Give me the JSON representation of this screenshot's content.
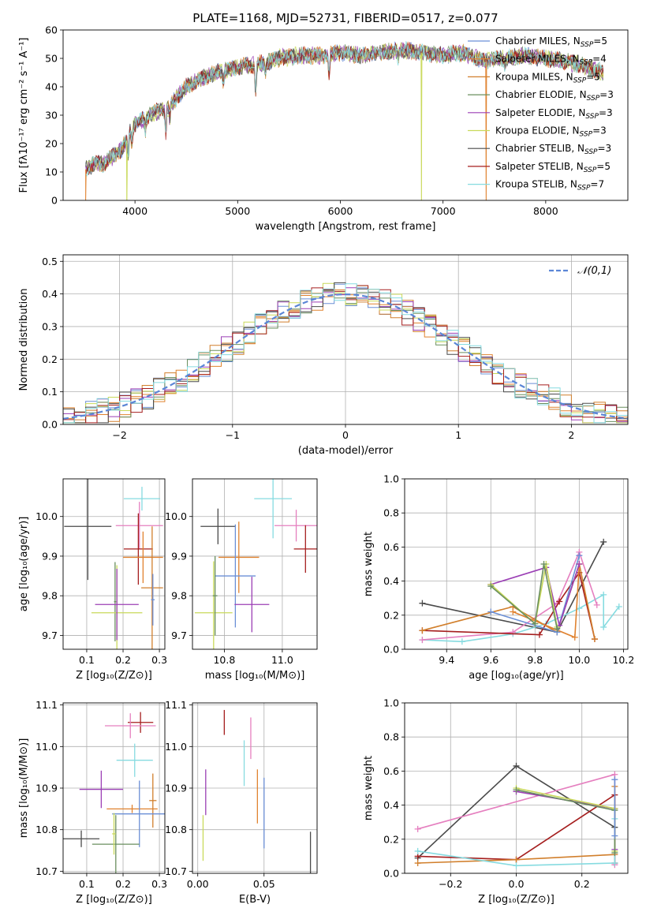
{
  "colors": [
    "#6b8fd6",
    "#e0822f",
    "#d17f2c",
    "#6a8f5f",
    "#9b3fb5",
    "#c9d95a",
    "#4a4a4a",
    "#a51e1e",
    "#86dbe0"
  ],
  "model_colors": {
    "chabrier_miles": "#6b8fd6",
    "salpeter_miles": "#e0822f",
    "kroupa_miles": "#d17f2c",
    "chabrier_elodie": "#6a8f5f",
    "salpeter_elodie": "#9b3fb5",
    "kroupa_elodie": "#c9d95a",
    "chabrier_stelib": "#4a4a4a",
    "salpeter_stelib": "#a51e1e",
    "kroupa_stelib": "#86dbe0",
    "pink": "#e57fbf",
    "normal": "#5b86d6"
  },
  "chart_data": [
    {
      "type": "line",
      "title": "PLATE=1168, MJD=52731, FIBERID=0517, z=0.077",
      "xlabel": "wavelength [Angstrom, rest frame]",
      "ylabel": "Flux [fλ10⁻¹⁷ erg cm⁻² s⁻¹ A⁻¹]",
      "xlim": [
        3300,
        8800
      ],
      "ylim": [
        0,
        60
      ],
      "xticks": [
        "4000",
        "5000",
        "6000",
        "7000",
        "8000"
      ],
      "yticks": [
        "0",
        "10",
        "20",
        "30",
        "40",
        "50",
        "60"
      ],
      "legend": {
        "position": "top-right",
        "entries": [
          {
            "label": "Chabrier MILES, N",
            "sub": "SSP",
            "tail": "=5"
          },
          {
            "label": "Salpeter MILES, N",
            "sub": "SSP",
            "tail": "=4"
          },
          {
            "label": "Kroupa MILES, N",
            "sub": "SSP",
            "tail": "=5"
          },
          {
            "label": "Chabrier ELODIE, N",
            "sub": "SSP",
            "tail": "=3"
          },
          {
            "label": "Salpeter ELODIE, N",
            "sub": "SSP",
            "tail": "=3"
          },
          {
            "label": "Kroupa ELODIE, N",
            "sub": "SSP",
            "tail": "=3"
          },
          {
            "label": "Chabrier STELIB, N",
            "sub": "SSP",
            "tail": "=3"
          },
          {
            "label": "Salpeter STELIB, N",
            "sub": "SSP",
            "tail": "=5"
          },
          {
            "label": "Kroupa STELIB, N",
            "sub": "SSP",
            "tail": "=7"
          }
        ]
      },
      "continuum": [
        [
          3520,
          11
        ],
        [
          3600,
          13
        ],
        [
          3700,
          13
        ],
        [
          3800,
          16
        ],
        [
          3870,
          18
        ],
        [
          3920,
          21
        ],
        [
          3960,
          25
        ],
        [
          4000,
          27
        ],
        [
          4100,
          29
        ],
        [
          4200,
          31
        ],
        [
          4300,
          32
        ],
        [
          4400,
          36
        ],
        [
          4500,
          40
        ],
        [
          4600,
          42
        ],
        [
          4800,
          45
        ],
        [
          5000,
          47
        ],
        [
          5200,
          48
        ],
        [
          5400,
          50
        ],
        [
          5600,
          51
        ],
        [
          5800,
          51
        ],
        [
          6000,
          52
        ],
        [
          6200,
          51
        ],
        [
          6400,
          52
        ],
        [
          6600,
          53
        ],
        [
          6800,
          52
        ],
        [
          7000,
          51
        ],
        [
          7200,
          52
        ],
        [
          7400,
          49
        ],
        [
          7600,
          50
        ],
        [
          7800,
          51
        ],
        [
          8000,
          50
        ],
        [
          8200,
          49
        ],
        [
          8400,
          47
        ],
        [
          8560,
          45
        ]
      ],
      "absorption_lines": [
        [
          3934,
          6
        ],
        [
          3969,
          5
        ],
        [
          4102,
          4
        ],
        [
          4300,
          8
        ],
        [
          4340,
          5
        ],
        [
          4861,
          4
        ],
        [
          5175,
          9
        ],
        [
          5270,
          3
        ],
        [
          5890,
          7
        ],
        [
          6563,
          3
        ],
        [
          7600,
          2
        ]
      ],
      "dropouts": [
        {
          "series": "salpeter_miles",
          "x": [
            3520,
            7420
          ]
        },
        {
          "series": "kroupa_elodie",
          "x": [
            3920,
            6790
          ]
        }
      ]
    },
    {
      "type": "histogram",
      "xlabel": "(data-model)/error",
      "ylabel": "Normed distribution",
      "xlim": [
        -2.5,
        2.5
      ],
      "ylim": [
        0,
        0.52
      ],
      "xticks": [
        "−2",
        "−1",
        "0",
        "1",
        "2"
      ],
      "yticks": [
        "0.0",
        "0.1",
        "0.2",
        "0.3",
        "0.4",
        "0.5"
      ],
      "legend": {
        "label": "𝒩(0,1)",
        "position": "top-right"
      },
      "bin_width": 0.1,
      "normal_pdf": {
        "mean": 0,
        "sigma": 1
      }
    },
    {
      "type": "scatter",
      "xlabel": "Z [log₁₀(Z/Z⊙)]",
      "ylabel": "age  [log₁₀(age/yr)]",
      "xlim": [
        0.035,
        0.315
      ],
      "ylim": [
        9.665,
        10.095
      ],
      "xticks": [
        "0.1",
        "0.2",
        "0.3"
      ],
      "yticks": [
        "9.7",
        "9.8",
        "9.9",
        "10.0"
      ],
      "points": [
        {
          "c": "#4a4a4a",
          "x": 0.103,
          "xerr": 0.065,
          "y": 9.975,
          "yerr": 0.135
        },
        {
          "c": "#e57fbf",
          "x": 0.245,
          "xerr": 0.065,
          "y": 9.977,
          "yerr": 0.06
        },
        {
          "c": "#86dbe0",
          "x": 0.252,
          "xerr": 0.05,
          "y": 10.045,
          "yerr": 0.03
        },
        {
          "c": "#a51e1e",
          "x": 0.242,
          "xerr": 0.04,
          "y": 9.918,
          "yerr": 0.09
        },
        {
          "c": "#e0822f",
          "x": 0.255,
          "xerr": 0.055,
          "y": 9.897,
          "yerr": 0.065
        },
        {
          "c": "#d17f2c",
          "x": 0.28,
          "xerr": 0.03,
          "y": 9.82,
          "yerr": 0.155
        },
        {
          "c": "#6b8fd6",
          "x": 0.282,
          "xerr": 0.005,
          "y": 9.79,
          "yerr": 0.065
        },
        {
          "c": "#6a8f5f",
          "x": 0.178,
          "xerr": 0.003,
          "y": 9.785,
          "yerr": 0.1
        },
        {
          "c": "#c9d95a",
          "x": 0.183,
          "xerr": 0.07,
          "y": 9.757,
          "yerr": 0.12
        },
        {
          "c": "#9b3fb5",
          "x": 0.183,
          "xerr": 0.06,
          "y": 9.778,
          "yerr": 0.09
        }
      ]
    },
    {
      "type": "scatter",
      "xlabel": "mass [log₁₀(M/M⊙)]",
      "ylabel": "",
      "xlim": [
        10.69,
        11.12
      ],
      "ylim": [
        9.665,
        10.095
      ],
      "xticks": [
        "10.8",
        "11.0"
      ],
      "yticks": [
        "9.7",
        "9.8",
        "9.9",
        "10.0"
      ],
      "points": [
        {
          "c": "#4a4a4a",
          "x": 10.778,
          "xerr": 0.06,
          "y": 9.975,
          "yerr": 0.045
        },
        {
          "c": "#86dbe0",
          "x": 10.968,
          "xerr": 0.065,
          "y": 10.045,
          "yerr": 0.1
        },
        {
          "c": "#e57fbf",
          "x": 11.048,
          "xerr": 0.075,
          "y": 9.977,
          "yerr": 0.04
        },
        {
          "c": "#a51e1e",
          "x": 11.08,
          "xerr": 0.04,
          "y": 9.918,
          "yerr": 0.06
        },
        {
          "c": "#e0822f",
          "x": 10.85,
          "xerr": 0.07,
          "y": 9.897,
          "yerr": 0.09
        },
        {
          "c": "#6b8fd6",
          "x": 10.838,
          "xerr": 0.07,
          "y": 9.85,
          "yerr": 0.13
        },
        {
          "c": "#9b3fb5",
          "x": 10.895,
          "xerr": 0.06,
          "y": 9.778,
          "yerr": 0.07
        },
        {
          "c": "#c9d95a",
          "x": 10.763,
          "xerr": 0.065,
          "y": 9.757,
          "yerr": 0.13
        },
        {
          "c": "#6a8f5f",
          "x": 10.768,
          "xerr": 0.008,
          "y": 9.8,
          "yerr": 0.1
        }
      ]
    },
    {
      "type": "line",
      "xlabel": "age  [log₁₀(age/yr)]",
      "ylabel": "mass weight",
      "xlim": [
        9.21,
        10.22
      ],
      "ylim": [
        0,
        1
      ],
      "xticks": [
        "9.4",
        "9.6",
        "9.8",
        "10.0",
        "10.2"
      ],
      "yticks": [
        "0.0",
        "0.2",
        "0.4",
        "0.6",
        "0.8",
        "1.0"
      ],
      "series": [
        {
          "c": "#4a4a4a",
          "points": [
            [
              9.29,
              0.27
            ],
            [
              9.9,
              0.1
            ],
            [
              10.11,
              0.63
            ]
          ]
        },
        {
          "c": "#86dbe0",
          "points": [
            [
              9.29,
              0.055
            ],
            [
              9.47,
              0.045
            ],
            [
              9.7,
              0.09
            ],
            [
              9.85,
              0.15
            ],
            [
              10.0,
              0.24
            ],
            [
              10.11,
              0.32
            ],
            [
              10.11,
              0.13
            ],
            [
              10.18,
              0.25
            ]
          ]
        },
        {
          "c": "#e57fbf",
          "points": [
            [
              9.29,
              0.055
            ],
            [
              9.7,
              0.1
            ],
            [
              9.9,
              0.27
            ],
            [
              10.0,
              0.57
            ],
            [
              10.08,
              0.26
            ]
          ]
        },
        {
          "c": "#a51e1e",
          "points": [
            [
              9.29,
              0.11
            ],
            [
              9.82,
              0.085
            ],
            [
              9.91,
              0.28
            ],
            [
              10.0,
              0.45
            ],
            [
              10.07,
              0.06
            ]
          ]
        },
        {
          "c": "#d17f2c",
          "points": [
            [
              9.29,
              0.11
            ],
            [
              9.7,
              0.25
            ],
            [
              9.9,
              0.1
            ],
            [
              10.0,
              0.5
            ],
            [
              10.07,
              0.06
            ]
          ]
        },
        {
          "c": "#e0822f",
          "points": [
            [
              9.7,
              0.22
            ],
            [
              9.98,
              0.07
            ],
            [
              10.0,
              0.5
            ]
          ]
        },
        {
          "c": "#6b8fd6",
          "points": [
            [
              9.6,
              0.22
            ],
            [
              9.9,
              0.1
            ],
            [
              10.0,
              0.55
            ]
          ]
        },
        {
          "c": "#9b3fb5",
          "points": [
            [
              9.6,
              0.38
            ],
            [
              9.85,
              0.48
            ],
            [
              9.91,
              0.14
            ],
            [
              10.0,
              0.5
            ]
          ]
        },
        {
          "c": "#c9d95a",
          "points": [
            [
              9.6,
              0.38
            ],
            [
              9.8,
              0.15
            ],
            [
              9.85,
              0.5
            ],
            [
              9.9,
              0.13
            ]
          ]
        },
        {
          "c": "#6a8f5f",
          "points": [
            [
              9.6,
              0.37
            ],
            [
              9.8,
              0.15
            ],
            [
              9.84,
              0.5
            ],
            [
              9.9,
              0.12
            ]
          ]
        }
      ]
    },
    {
      "type": "scatter",
      "xlabel": "Z [log₁₀(Z/Z⊙)]",
      "ylabel": "mass [log₁₀(M/M⊙)]",
      "xlim": [
        0.035,
        0.315
      ],
      "ylim": [
        10.695,
        11.105
      ],
      "xticks": [
        "0.1",
        "0.2",
        "0.3"
      ],
      "yticks": [
        "10.7",
        "10.8",
        "10.9",
        "11.0",
        "11.1"
      ],
      "points": [
        {
          "c": "#a51e1e",
          "x": 0.248,
          "xerr": 0.035,
          "y": 11.058,
          "yerr": 0.025
        },
        {
          "c": "#e57fbf",
          "x": 0.22,
          "xerr": 0.07,
          "y": 11.05,
          "yerr": 0.03
        },
        {
          "c": "#86dbe0",
          "x": 0.232,
          "xerr": 0.05,
          "y": 10.967,
          "yerr": 0.04
        },
        {
          "c": "#9b3fb5",
          "x": 0.14,
          "xerr": 0.06,
          "y": 10.897,
          "yerr": 0.045
        },
        {
          "c": "#e0822f",
          "x": 0.225,
          "xerr": 0.07,
          "y": 10.85,
          "yerr": 0.01
        },
        {
          "c": "#d17f2c",
          "x": 0.282,
          "xerr": 0.01,
          "y": 10.87,
          "yerr": 0.065
        },
        {
          "c": "#6b8fd6",
          "x": 0.245,
          "xerr": 0.075,
          "y": 10.838,
          "yerr": 0.08
        },
        {
          "c": "#4a4a4a",
          "x": 0.085,
          "xerr": 0.05,
          "y": 10.778,
          "yerr": 0.02
        },
        {
          "c": "#6a8f5f",
          "x": 0.18,
          "xerr": 0.065,
          "y": 10.765,
          "yerr": 0.07
        },
        {
          "c": "#c9d95a",
          "x": 0.175,
          "xerr": 0.005,
          "y": 10.79,
          "yerr": 0.05
        }
      ]
    },
    {
      "type": "scatter",
      "xlabel": "E(B-V)",
      "ylabel": "",
      "xlim": [
        -0.004,
        0.09
      ],
      "ylim": [
        10.695,
        11.105
      ],
      "xticks": [
        "0.00",
        "0.05"
      ],
      "yticks": [
        "10.7",
        "10.8",
        "10.9",
        "11.0",
        "11.1"
      ],
      "points": [
        {
          "c": "#a51e1e",
          "x": 0.02,
          "xerr": 0,
          "y": 11.058,
          "yerr": 0.03
        },
        {
          "c": "#e57fbf",
          "x": 0.04,
          "xerr": 0,
          "y": 11.02,
          "yerr": 0.05
        },
        {
          "c": "#86dbe0",
          "x": 0.035,
          "xerr": 0,
          "y": 10.96,
          "yerr": 0.055
        },
        {
          "c": "#9b3fb5",
          "x": 0.006,
          "xerr": 0,
          "y": 10.89,
          "yerr": 0.055
        },
        {
          "c": "#e0822f",
          "x": 0.045,
          "xerr": 0,
          "y": 10.88,
          "yerr": 0.065
        },
        {
          "c": "#6b8fd6",
          "x": 0.05,
          "xerr": 0,
          "y": 10.84,
          "yerr": 0.085
        },
        {
          "c": "#c9d95a",
          "x": 0.004,
          "xerr": 0,
          "y": 10.78,
          "yerr": 0.055
        },
        {
          "c": "#4a4a4a",
          "x": 0.085,
          "xerr": 0,
          "y": 10.74,
          "yerr": 0.055
        }
      ]
    },
    {
      "type": "line",
      "xlabel": "Z [log₁₀(Z/Z⊙)]",
      "ylabel": "mass weight",
      "xlim": [
        -0.34,
        0.34
      ],
      "ylim": [
        0,
        1
      ],
      "xticks": [
        "−0.2",
        "0.0",
        "0.2"
      ],
      "yticks": [
        "0.0",
        "0.2",
        "0.4",
        "0.6",
        "0.8",
        "1.0"
      ],
      "series": [
        {
          "c": "#4a4a4a",
          "points": [
            [
              -0.3,
              0.09
            ],
            [
              0.0,
              0.63
            ],
            [
              0.3,
              0.27
            ]
          ]
        },
        {
          "c": "#e57fbf",
          "points": [
            [
              -0.3,
              0.26
            ],
            [
              0.3,
              0.58
            ],
            [
              0.3,
              0.05
            ]
          ]
        },
        {
          "c": "#a51e1e",
          "points": [
            [
              -0.3,
              0.1
            ],
            [
              0.0,
              0.08
            ],
            [
              0.3,
              0.46
            ],
            [
              0.3,
              0.06
            ]
          ]
        },
        {
          "c": "#d17f2c",
          "points": [
            [
              -0.3,
              0.06
            ],
            [
              0.0,
              0.08
            ],
            [
              0.3,
              0.11
            ],
            [
              0.3,
              0.51
            ]
          ]
        },
        {
          "c": "#86dbe0",
          "points": [
            [
              -0.3,
              0.13
            ],
            [
              0.0,
              0.045
            ],
            [
              0.3,
              0.06
            ],
            [
              0.3,
              0.32
            ]
          ]
        },
        {
          "c": "#9b3fb5",
          "points": [
            [
              0.0,
              0.48
            ],
            [
              0.3,
              0.38
            ],
            [
              0.3,
              0.14
            ]
          ]
        },
        {
          "c": "#c9d95a",
          "points": [
            [
              0.0,
              0.5
            ],
            [
              0.3,
              0.38
            ],
            [
              0.3,
              0.13
            ]
          ]
        },
        {
          "c": "#6a8f5f",
          "points": [
            [
              0.0,
              0.49
            ],
            [
              0.3,
              0.37
            ],
            [
              0.3,
              0.12
            ]
          ]
        },
        {
          "c": "#6b8fd6",
          "points": [
            [
              0.3,
              0.22
            ],
            [
              0.3,
              0.55
            ]
          ]
        }
      ]
    }
  ]
}
